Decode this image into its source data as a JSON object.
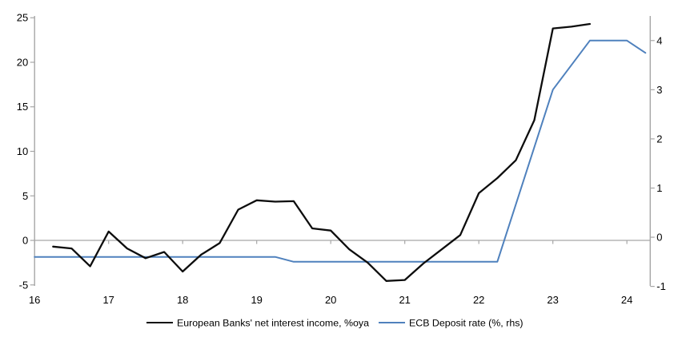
{
  "colors": {
    "background": "#ffffff",
    "axis_gray": "#a6a6a6",
    "text": "#000000",
    "series_nii": "#0d0d0d",
    "series_ecb": "#4f81bd"
  },
  "chart_data": {
    "type": "line",
    "title": "",
    "grid": "zero-line-only",
    "legend_position": "bottom-center",
    "x_axis": {
      "lim": [
        16,
        24.315
      ],
      "tick_values": [
        16,
        17,
        18,
        19,
        20,
        21,
        22,
        23,
        24
      ],
      "tick_labels": [
        "16",
        "17",
        "18",
        "19",
        "20",
        "21",
        "22",
        "23",
        "24"
      ]
    },
    "y_axis_left": {
      "lim": [
        -5.11,
        25.2
      ],
      "tick_values": [
        25,
        20,
        15,
        10,
        5,
        0,
        -5
      ],
      "tick_labels": [
        "25",
        "20",
        "15",
        "10",
        "5",
        "0",
        "-5"
      ]
    },
    "y_axis_right": {
      "lim": [
        -0.99,
        4.5
      ],
      "tick_values": [
        4,
        3,
        2,
        1,
        0,
        -1
      ],
      "tick_labels": [
        "4",
        "3",
        "2",
        "1",
        "0",
        "-1"
      ]
    },
    "series": [
      {
        "name": "European Banks' net interest income, %oya",
        "axis": "left",
        "color": "#0d0d0d",
        "width": 2.3,
        "points": [
          [
            16.25,
            -0.7
          ],
          [
            16.5,
            -0.9
          ],
          [
            16.75,
            -2.9
          ],
          [
            17.0,
            1.0
          ],
          [
            17.25,
            -0.9
          ],
          [
            17.5,
            -2.0
          ],
          [
            17.75,
            -1.3
          ],
          [
            18.0,
            -3.5
          ],
          [
            18.25,
            -1.6
          ],
          [
            18.5,
            -0.3
          ],
          [
            18.75,
            3.45
          ],
          [
            19.0,
            4.5
          ],
          [
            19.25,
            4.35
          ],
          [
            19.5,
            4.4
          ],
          [
            19.75,
            1.35
          ],
          [
            20.0,
            1.1
          ],
          [
            20.25,
            -1.0
          ],
          [
            20.5,
            -2.5
          ],
          [
            20.75,
            -4.55
          ],
          [
            21.0,
            -4.45
          ],
          [
            21.25,
            -2.6
          ],
          [
            21.5,
            -1.0
          ],
          [
            21.75,
            0.6
          ],
          [
            22.0,
            5.3
          ],
          [
            22.25,
            7.0
          ],
          [
            22.5,
            9.0
          ],
          [
            22.75,
            13.5
          ],
          [
            23.0,
            23.8
          ],
          [
            23.25,
            24.0
          ],
          [
            23.5,
            24.3
          ]
        ]
      },
      {
        "name": "ECB Deposit rate (%, rhs)",
        "axis": "right",
        "color": "#4f81bd",
        "width": 2.0,
        "points": [
          [
            16.0,
            -0.4
          ],
          [
            19.25,
            -0.4
          ],
          [
            19.5,
            -0.5
          ],
          [
            22.25,
            -0.5
          ],
          [
            23.0,
            3.0
          ],
          [
            23.5,
            4.0
          ],
          [
            24.0,
            4.0
          ],
          [
            24.25,
            3.75
          ]
        ]
      }
    ]
  }
}
